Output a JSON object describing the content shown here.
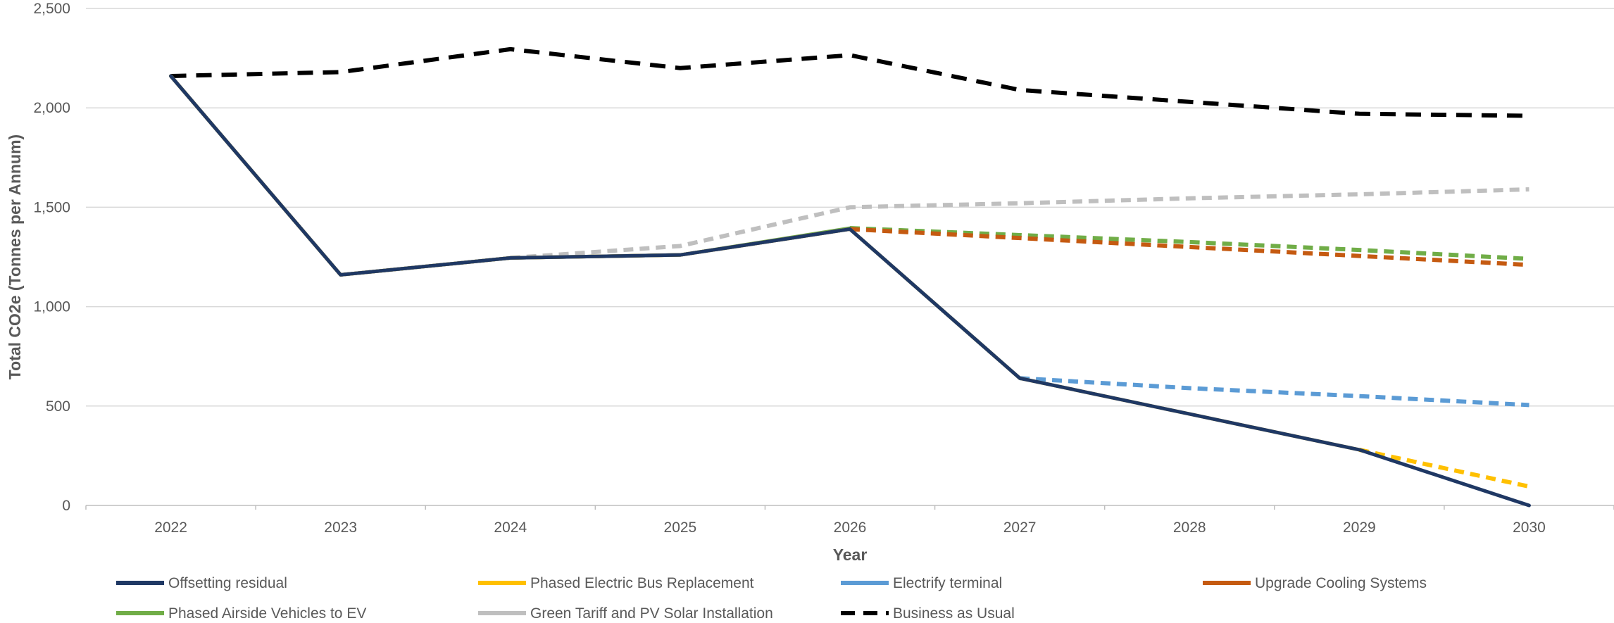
{
  "chart_data": {
    "type": "line",
    "title": "",
    "xlabel": "Year",
    "ylabel": "Total CO2e (Tonnes per Annum)",
    "x": [
      "2022",
      "2023",
      "2024",
      "2025",
      "2026",
      "2027",
      "2028",
      "2029",
      "2030"
    ],
    "ylim": [
      0,
      2500
    ],
    "yticks": [
      0,
      500,
      1000,
      1500,
      2000,
      2500
    ],
    "ytick_labels": [
      "0",
      "500",
      "1,000",
      "1,500",
      "2,000",
      "2,500"
    ],
    "grid": "horizontal",
    "legend_position": "bottom",
    "series": [
      {
        "name": "Offsetting residual",
        "color": "#1f3864",
        "solid": [
          [
            0,
            2160
          ],
          [
            1,
            1160
          ],
          [
            2,
            1245
          ],
          [
            3,
            1260
          ],
          [
            4,
            1390
          ],
          [
            5,
            640
          ],
          [
            6,
            460
          ],
          [
            7,
            280
          ],
          [
            8,
            0
          ]
        ],
        "dashed": []
      },
      {
        "name": "Phased Electric Bus Replacement",
        "color": "#ffc000",
        "solid": [
          [
            0,
            2160
          ],
          [
            1,
            1160
          ],
          [
            2,
            1245
          ],
          [
            3,
            1260
          ],
          [
            4,
            1390
          ],
          [
            5,
            640
          ],
          [
            6,
            460
          ],
          [
            7,
            280
          ]
        ],
        "dashed": [
          [
            7,
            280
          ],
          [
            8,
            95
          ]
        ]
      },
      {
        "name": "Electrify terminal",
        "color": "#5b9bd5",
        "solid": [
          [
            0,
            2160
          ],
          [
            1,
            1160
          ],
          [
            2,
            1245
          ],
          [
            3,
            1260
          ],
          [
            4,
            1390
          ],
          [
            5,
            640
          ]
        ],
        "dashed": [
          [
            5,
            640
          ],
          [
            6,
            590
          ],
          [
            7,
            550
          ],
          [
            8,
            505
          ]
        ]
      },
      {
        "name": "Upgrade Cooling Systems",
        "color": "#c55a11",
        "solid": [
          [
            0,
            2160
          ],
          [
            1,
            1160
          ],
          [
            2,
            1245
          ],
          [
            3,
            1260
          ],
          [
            4,
            1390
          ]
        ],
        "dashed": [
          [
            4,
            1390
          ],
          [
            5,
            1345
          ],
          [
            6,
            1300
          ],
          [
            7,
            1255
          ],
          [
            8,
            1210
          ]
        ]
      },
      {
        "name": "Phased Airside Vehicles to EV",
        "color": "#70ad47",
        "solid": [
          [
            0,
            2160
          ],
          [
            1,
            1160
          ],
          [
            2,
            1245
          ],
          [
            3,
            1260
          ],
          [
            4,
            1395
          ]
        ],
        "dashed": [
          [
            4,
            1395
          ],
          [
            5,
            1360
          ],
          [
            6,
            1325
          ],
          [
            7,
            1285
          ],
          [
            8,
            1240
          ]
        ]
      },
      {
        "name": "Green Tariff and PV Solar Installation",
        "color": "#bfbfbf",
        "solid": [
          [
            0,
            2160
          ],
          [
            1,
            1160
          ],
          [
            2,
            1245
          ]
        ],
        "dashed": [
          [
            2,
            1245
          ],
          [
            3,
            1305
          ],
          [
            4,
            1500
          ],
          [
            5,
            1520
          ],
          [
            6,
            1545
          ],
          [
            7,
            1565
          ],
          [
            8,
            1590
          ]
        ]
      },
      {
        "name": "Business as Usual",
        "color": "#000000",
        "solid": [],
        "dashed": [
          [
            0,
            2160
          ],
          [
            1,
            2180
          ],
          [
            2,
            2295
          ],
          [
            3,
            2200
          ],
          [
            4,
            2265
          ],
          [
            5,
            2090
          ],
          [
            6,
            2030
          ],
          [
            7,
            1970
          ],
          [
            8,
            1960
          ]
        ]
      }
    ]
  }
}
